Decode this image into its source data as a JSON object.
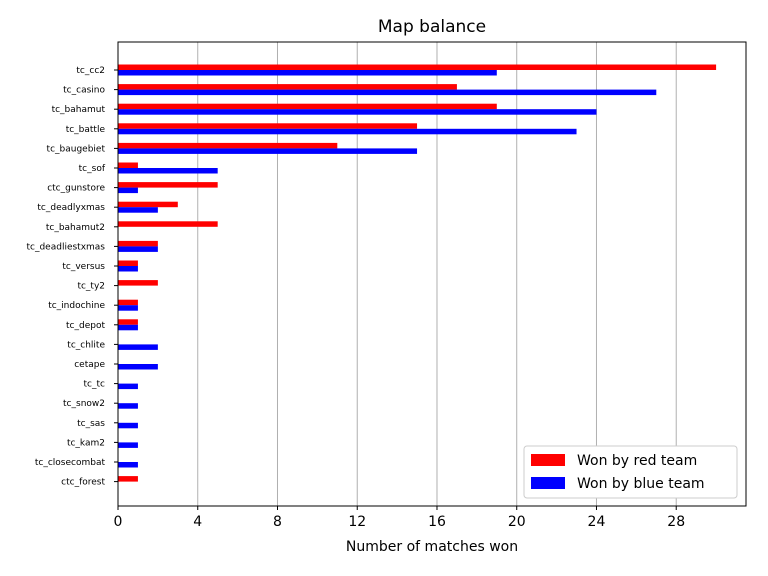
{
  "chart_data": {
    "type": "bar",
    "orientation": "horizontal",
    "title": "Map balance",
    "xlabel": "Number of matches won",
    "ylabel": "",
    "xlim": [
      0,
      31.5
    ],
    "xticks": [
      0,
      4,
      8,
      12,
      16,
      20,
      24,
      28
    ],
    "grid": "vertical",
    "legend_position": "bottom-right",
    "categories": [
      "tc_cc2",
      "tc_casino",
      "tc_bahamut",
      "tc_battle",
      "tc_baugebiet",
      "tc_sof",
      "ctc_gunstore",
      "tc_deadlyxmas",
      "tc_bahamut2",
      "tc_deadliestxmas",
      "tc_versus",
      "tc_ty2",
      "tc_indochine",
      "tc_depot",
      "tc_chlite",
      "cetape",
      "tc_tc",
      "tc_snow2",
      "tc_sas",
      "tc_kam2",
      "tc_closecombat",
      "ctc_forest"
    ],
    "series": [
      {
        "name": "Won by red team",
        "color": "#ff0000",
        "values": [
          30,
          17,
          19,
          15,
          11,
          1,
          5,
          3,
          5,
          2,
          1,
          2,
          1,
          1,
          0,
          0,
          0,
          0,
          0,
          0,
          0,
          1
        ]
      },
      {
        "name": "Won by blue team",
        "color": "#0000ff",
        "values": [
          19,
          27,
          24,
          23,
          15,
          5,
          1,
          2,
          0,
          2,
          1,
          0,
          1,
          1,
          2,
          2,
          1,
          1,
          1,
          1,
          1,
          0
        ]
      }
    ]
  }
}
